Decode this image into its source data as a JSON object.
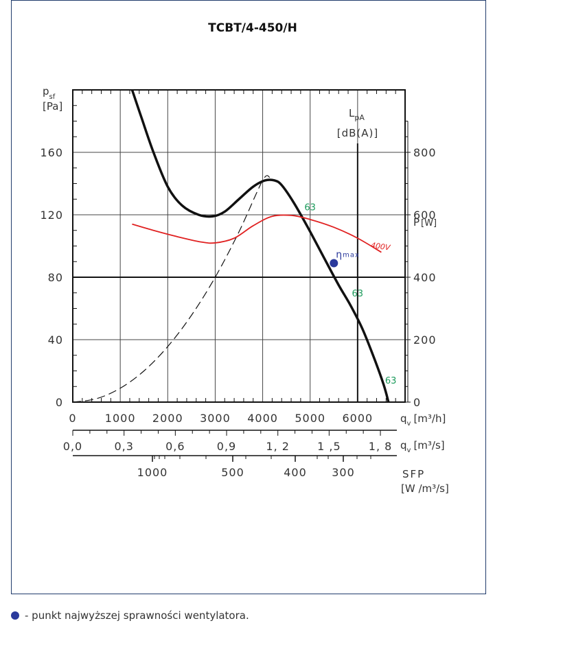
{
  "chart_data": {
    "type": "line",
    "title": "TCBT/4-450/H",
    "x_axis": {
      "label": "q",
      "label_sub": "v",
      "unit": "[m³/h]",
      "range": [
        0,
        7000
      ],
      "ticks": [
        0,
        1000,
        2000,
        3000,
        4000,
        5000,
        6000
      ],
      "tick_labels": [
        "0",
        "1000",
        "2000",
        "3000",
        "4000",
        "5000",
        "6000"
      ]
    },
    "x2_axis": {
      "label": "q",
      "label_sub": "v",
      "unit": "[m³/s]",
      "ticks": [
        0.0,
        0.3,
        0.6,
        0.9,
        1.2,
        1.5,
        1.8
      ],
      "tick_labels": [
        "0,0",
        "0,3",
        "0,6",
        "0,9",
        "1, 2",
        "1 ,5",
        "1, 8"
      ]
    },
    "sfp_axis": {
      "label": "SFP",
      "unit": "[W /m³/s]",
      "ticks": [
        1000,
        500,
        400,
        300
      ],
      "tick_labels": [
        "1000",
        "500",
        "400",
        "300"
      ]
    },
    "y_axis": {
      "label": "p",
      "label_sub": "sf",
      "unit": "[Pa]",
      "range": [
        0,
        200
      ],
      "ticks": [
        0,
        40,
        80,
        120,
        160
      ],
      "tick_labels": [
        "0",
        "40",
        "80",
        "120",
        "160"
      ]
    },
    "y2_axis": {
      "label": "P",
      "unit": "[W]",
      "range": [
        0,
        1000
      ],
      "ticks": [
        0,
        200,
        400,
        600,
        800
      ],
      "tick_labels": [
        "0",
        "200",
        "400",
        "600",
        "800"
      ],
      "color": "#e02020"
    },
    "lpa_label": {
      "main": "L",
      "sub": "pA",
      "unit": "[dB(A)]",
      "color": "#1a9a5a"
    },
    "series": [
      {
        "kind": "pressure",
        "color": "#111111",
        "x": [
          1250,
          1450,
          1700,
          2000,
          2300,
          2650,
          2950,
          3200,
          3500,
          3800,
          4050,
          4250,
          4400,
          4650,
          4950,
          5300,
          5600,
          5850,
          6100,
          6350,
          6550,
          6650
        ],
        "y": [
          200,
          182,
          160,
          138,
          126,
          120,
          119,
          122,
          130,
          138,
          142,
          142,
          139,
          128,
          112,
          92,
          75,
          62,
          47,
          28,
          11,
          0
        ]
      },
      {
        "kind": "system",
        "color": "#111111",
        "x": [
          0,
          500,
          1000,
          1500,
          2000,
          2500,
          3000,
          3500,
          4000,
          4150
        ],
        "y": [
          0,
          2.2,
          8.9,
          20,
          35.6,
          55.6,
          80,
          109,
          142,
          144
        ]
      },
      {
        "name": "400V",
        "kind": "power",
        "color": "#e02020",
        "x": [
          1250,
          1700,
          2200,
          2700,
          3000,
          3400,
          3800,
          4200,
          4600,
          5000,
          5500,
          6000,
          6500
        ],
        "y": [
          570,
          550,
          530,
          513,
          510,
          525,
          565,
          595,
          598,
          585,
          560,
          525,
          480
        ]
      }
    ],
    "lpa_markers": [
      {
        "label": "63",
        "x": 4850,
        "y": 125
      },
      {
        "label": "63",
        "x": 5850,
        "y": 70
      },
      {
        "label": "63",
        "x": 6550,
        "y": 14
      }
    ],
    "eta_point": {
      "label": "η",
      "sub": "max",
      "x": 5500,
      "y": 89,
      "color": "#2b3a9c"
    },
    "vertical_line_x": 6000,
    "horizontal_line_y": 80,
    "grid": true
  },
  "legend": {
    "text": "- punkt najwyższej sprawności wentylatora."
  }
}
